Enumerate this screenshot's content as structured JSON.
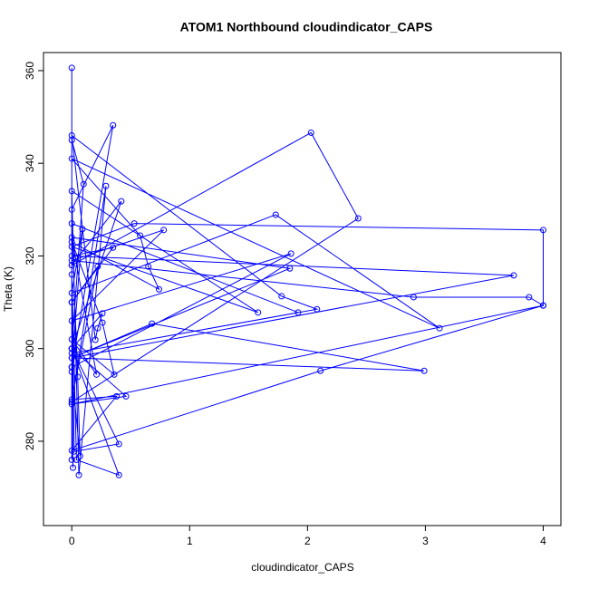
{
  "chart_data": {
    "type": "line",
    "title": "ATOM1 Northbound cloudindicator_CAPS",
    "x_label": "cloudindicator_CAPS",
    "y_label": "Theta (K)",
    "xlim": [
      -0.24,
      4.15
    ],
    "ylim": [
      261.8,
      363.9
    ],
    "xticks": [
      0,
      1,
      2,
      3,
      4
    ],
    "yticks": [
      280,
      300,
      320,
      340,
      360
    ],
    "grid": false,
    "markers": true,
    "series": [
      {
        "color": "#0000ff",
        "x": [
          0,
          0,
          0.35,
          0,
          0,
          0.1,
          0,
          0.42,
          0,
          0,
          0,
          2.03,
          2.43,
          0,
          0.29,
          0.06,
          0,
          1.58,
          0,
          0.53,
          4,
          4,
          3.88,
          2.9,
          0,
          0.78,
          0,
          1.86,
          0,
          0.09,
          0,
          1.73,
          3.12,
          0,
          0.58,
          0.65,
          0.74,
          0,
          0.26,
          0.36,
          0,
          0.21,
          0,
          1.85,
          0,
          0.68,
          2.99,
          0,
          3.75,
          0,
          0.35,
          0,
          0.22,
          0,
          0.38,
          0,
          2.11,
          4,
          0,
          0.46,
          0,
          0.4,
          0.02,
          0,
          0.04,
          0.4,
          0,
          0.26,
          0.22,
          0.2,
          0,
          1.78,
          2.08,
          0,
          1.92,
          0,
          0.05,
          0.07,
          0,
          0.01,
          0
        ],
        "values": [
          360.6,
          296,
          348.2,
          330,
          345,
          335.5,
          300,
          331.8,
          318,
          276,
          318,
          346.6,
          328.1,
          288.5,
          335.1,
          272.7,
          334,
          307.8,
          322,
          327,
          325.6,
          309.3,
          311.1,
          311.1,
          319,
          325.6,
          306,
          320.5,
          296,
          325.8,
          312,
          328.9,
          304.4,
          341,
          324.4,
          317.7,
          312.8,
          323,
          305.6,
          294.4,
          302,
          294.4,
          324,
          317.3,
          298,
          305.4,
          295.2,
          298,
          315.8,
          320,
          321.8,
          310,
          317.7,
          289,
          289.7,
          278,
          295.2,
          309.3,
          288,
          289.7,
          300,
          279.4,
          277.8,
          316,
          276,
          272.7,
          300,
          307.6,
          304.4,
          301.9,
          346,
          311.3,
          308.5,
          299,
          307.8,
          327,
          293.9,
          276.8,
          295,
          274.3,
          310
        ]
      }
    ]
  }
}
